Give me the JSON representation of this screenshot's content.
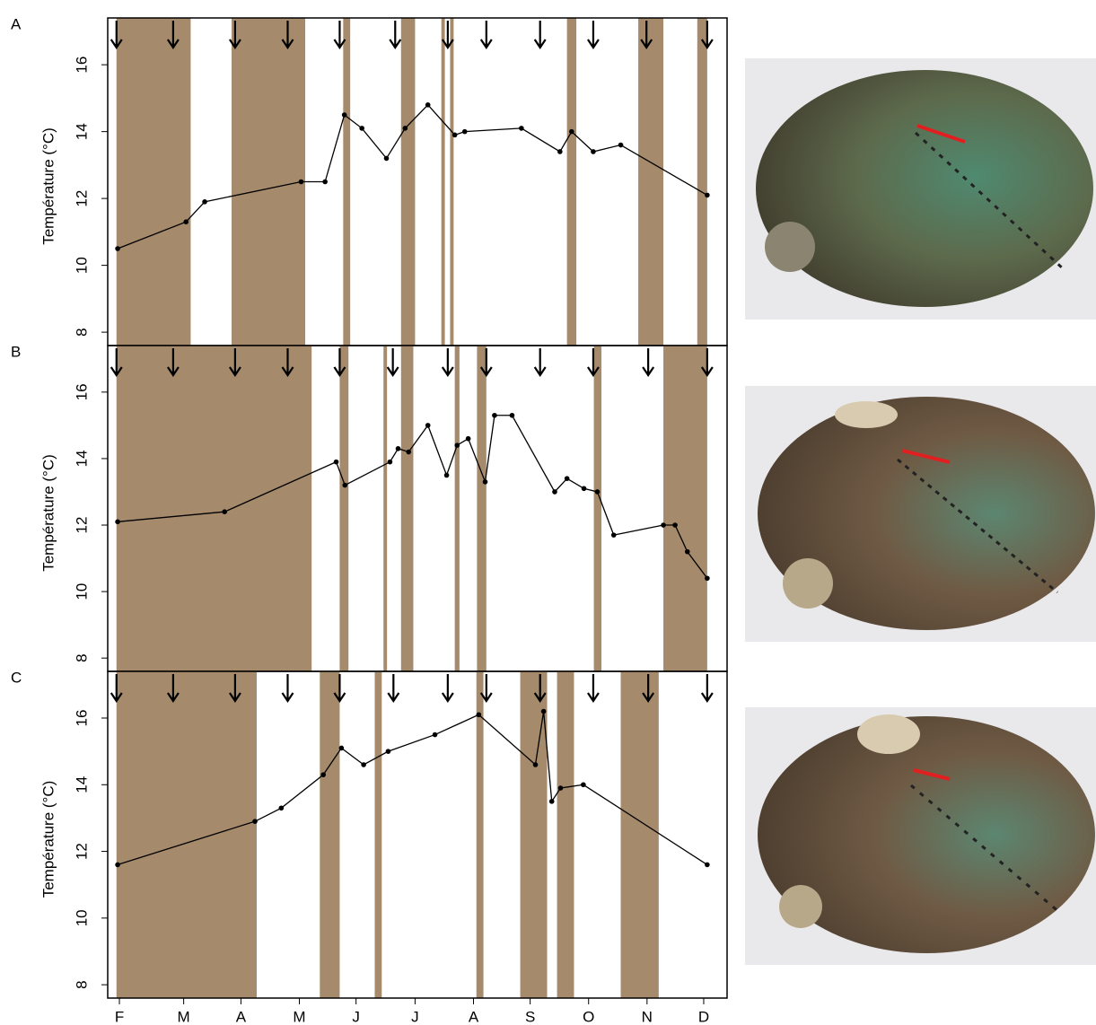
{
  "chart_data": [
    {
      "type": "line",
      "panel": "A",
      "ylabel": "Température (°C)",
      "color": "#000000",
      "band_color": "#a58a6c",
      "xlim": [
        0.8,
        11.4
      ],
      "ylim": [
        7.6,
        17.4
      ],
      "yticks": [
        8,
        10,
        12,
        14,
        16
      ],
      "x": [
        0.97,
        2.14,
        2.46,
        4.11,
        4.52,
        4.85,
        5.15,
        5.57,
        5.89,
        6.28,
        6.74,
        6.91,
        7.88,
        8.54,
        8.74,
        9.11,
        9.58,
        11.06
      ],
      "values": [
        10.5,
        11.3,
        11.9,
        12.5,
        12.5,
        14.5,
        14.1,
        13.2,
        14.1,
        14.8,
        13.9,
        14.0,
        14.1,
        13.4,
        14.0,
        13.4,
        13.6,
        12.1
      ],
      "bands": [
        [
          0.95,
          2.22
        ],
        [
          2.92,
          4.18
        ],
        [
          4.83,
          4.95
        ],
        [
          5.82,
          6.06
        ],
        [
          6.51,
          6.57
        ],
        [
          6.66,
          6.72
        ],
        [
          8.66,
          8.82
        ],
        [
          9.88,
          10.31
        ],
        [
          10.89,
          11.06
        ]
      ],
      "arrows": [
        0.95,
        1.92,
        2.98,
        3.88,
        4.77,
        5.72,
        6.62,
        7.28,
        8.2,
        9.11,
        10.02,
        11.06
      ]
    },
    {
      "type": "line",
      "panel": "B",
      "ylabel": "Température (°C)",
      "color": "#000000",
      "band_color": "#a58a6c",
      "xlim": [
        0.8,
        11.4
      ],
      "ylim": [
        7.6,
        17.4
      ],
      "yticks": [
        8,
        10,
        12,
        14,
        16
      ],
      "x": [
        0.97,
        2.8,
        4.71,
        4.86,
        5.63,
        5.77,
        5.95,
        6.28,
        6.6,
        6.78,
        6.97,
        7.26,
        7.42,
        7.72,
        8.45,
        8.66,
        8.95,
        9.18,
        9.46,
        10.31,
        10.51,
        10.72,
        11.06
      ],
      "values": [
        12.1,
        12.4,
        13.9,
        13.2,
        13.9,
        14.3,
        14.2,
        15.0,
        13.5,
        14.4,
        14.6,
        13.3,
        15.3,
        15.3,
        13.0,
        13.4,
        13.1,
        13.0,
        11.7,
        12.0,
        12.0,
        11.2,
        10.4
      ],
      "bands": [
        [
          0.95,
          4.29
        ],
        [
          4.77,
          4.92
        ],
        [
          5.52,
          5.58
        ],
        [
          5.82,
          6.03
        ],
        [
          6.74,
          6.82
        ],
        [
          7.12,
          7.28
        ],
        [
          9.12,
          9.25
        ],
        [
          10.31,
          11.06
        ]
      ],
      "arrows": [
        0.95,
        1.92,
        2.98,
        3.88,
        4.77,
        5.68,
        6.62,
        7.28,
        8.2,
        9.11,
        10.05,
        11.06
      ]
    },
    {
      "type": "line",
      "panel": "C",
      "ylabel": "Température (°C)",
      "color": "#000000",
      "band_color": "#a58a6c",
      "xlim": [
        0.8,
        11.4
      ],
      "ylim": [
        7.6,
        17.4
      ],
      "yticks": [
        8,
        10,
        12,
        14,
        16
      ],
      "xticks": [
        {
          "value": 1,
          "label": "F"
        },
        {
          "value": 2.1,
          "label": "M"
        },
        {
          "value": 3.08,
          "label": "A"
        },
        {
          "value": 4.08,
          "label": "M"
        },
        {
          "value": 5.05,
          "label": "J"
        },
        {
          "value": 6.06,
          "label": "J"
        },
        {
          "value": 7.06,
          "label": "A"
        },
        {
          "value": 8.03,
          "label": "S"
        },
        {
          "value": 9.03,
          "label": "O"
        },
        {
          "value": 10.03,
          "label": "N"
        },
        {
          "value": 11.0,
          "label": "D"
        }
      ],
      "x": [
        0.97,
        3.32,
        3.77,
        4.49,
        4.8,
        5.18,
        5.6,
        6.4,
        7.15,
        8.12,
        8.26,
        8.4,
        8.55,
        8.94,
        11.06
      ],
      "values": [
        11.6,
        12.9,
        13.3,
        14.3,
        15.1,
        14.6,
        15.0,
        15.5,
        16.1,
        14.6,
        16.2,
        13.5,
        13.9,
        14.0,
        11.6
      ],
      "bands": [
        [
          0.95,
          3.35
        ],
        [
          4.43,
          4.77
        ],
        [
          5.37,
          5.49
        ],
        [
          7.11,
          7.23
        ],
        [
          7.86,
          8.32
        ],
        [
          8.49,
          8.78
        ],
        [
          9.58,
          10.23
        ]
      ],
      "arrows": [
        0.95,
        1.92,
        2.98,
        3.88,
        4.77,
        5.69,
        6.62,
        7.28,
        8.2,
        9.11,
        10.05,
        11.06
      ]
    }
  ]
}
